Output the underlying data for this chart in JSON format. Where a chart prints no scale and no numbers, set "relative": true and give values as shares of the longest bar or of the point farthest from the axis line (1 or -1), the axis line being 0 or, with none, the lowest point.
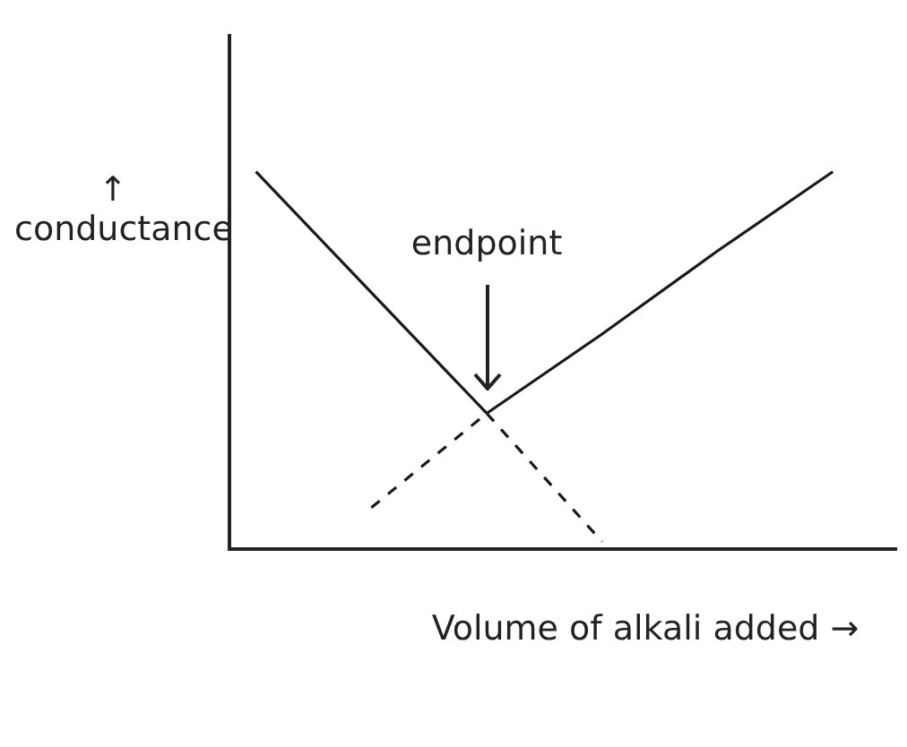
{
  "chart_data": {
    "type": "line",
    "relative": true,
    "xlabel": "Volume of alkali added →",
    "ylabel": "↑ conductance",
    "categories": [
      null,
      null,
      null,
      null,
      null,
      null
    ],
    "series": [
      {
        "color": "#1a1a1a",
        "line_style": "solid",
        "values": [
          1,
          0.68,
          0.36,
          null,
          null,
          null
        ]
      },
      {
        "color": "#1a1a1a",
        "line_style": "dashed",
        "values": [
          null,
          null,
          0.36,
          0.02,
          null,
          null
        ]
      },
      {
        "color": "#1a1a1a",
        "line_style": "solid",
        "values": [
          null,
          null,
          0.36,
          0.57,
          0.79,
          1
        ]
      },
      {
        "color": "#1a1a1a",
        "line_style": "dashed",
        "values": [
          null,
          0.11,
          0.36,
          null,
          null,
          null
        ]
      }
    ],
    "annotations": [
      "endpoint"
    ],
    "legend": false,
    "grid": false,
    "marker": "none"
  }
}
